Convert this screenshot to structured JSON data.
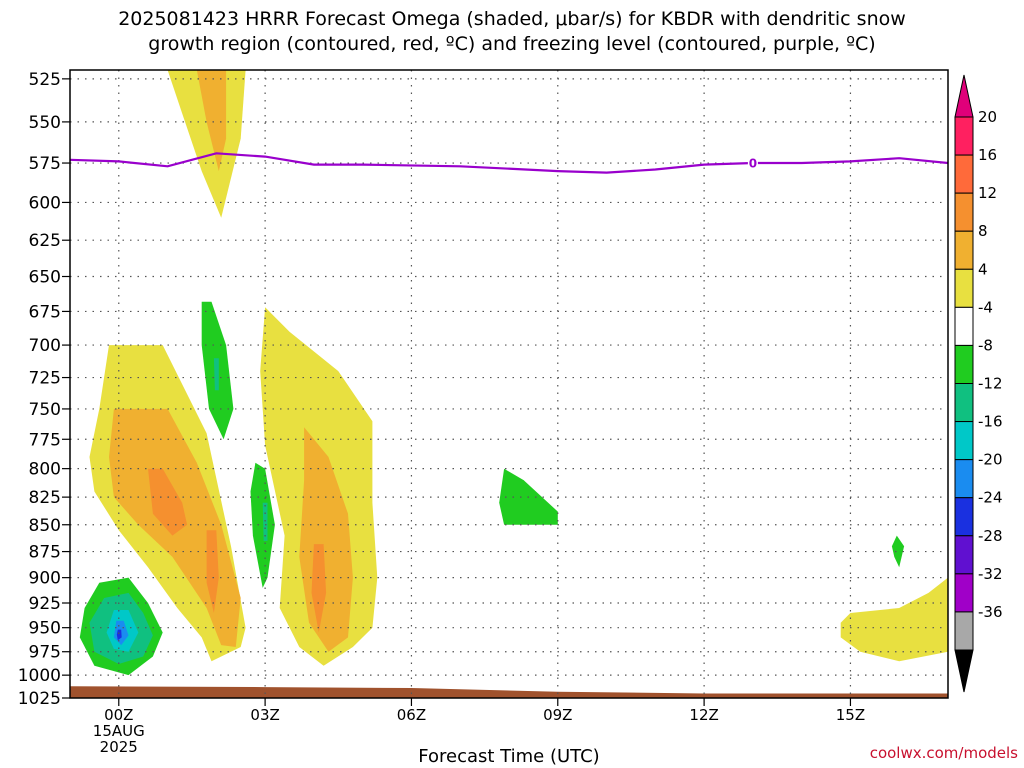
{
  "title": {
    "line1": "2025081423 HRRR Forecast Omega (shaded, μbar/s) for KBDR with dendritic snow",
    "line2": "growth region (contoured, red, ºC) and freezing level (contoured, purple, ºC)"
  },
  "credit": "coolwx.com/models",
  "chart_data": {
    "type": "contour",
    "xlabel": "Forecast Time (UTC)",
    "x_unit": "hours",
    "x_ticks": [
      {
        "h": 0,
        "label": "00Z",
        "sub": [
          "15AUG",
          "2025"
        ]
      },
      {
        "h": 3,
        "label": "03Z",
        "sub": []
      },
      {
        "h": 6,
        "label": "06Z",
        "sub": []
      },
      {
        "h": 9,
        "label": "09Z",
        "sub": []
      },
      {
        "h": 12,
        "label": "12Z",
        "sub": []
      },
      {
        "h": 15,
        "label": "15Z",
        "sub": []
      }
    ],
    "xlim": [
      -1,
      17
    ],
    "y_unit": "hPa",
    "y_ticks": [
      525,
      550,
      575,
      600,
      625,
      650,
      675,
      700,
      725,
      750,
      775,
      800,
      825,
      850,
      875,
      900,
      925,
      950,
      975,
      1000,
      1025
    ],
    "ylim": [
      520,
      1025
    ],
    "y_scale": "log",
    "grid": true,
    "colorbar": {
      "labels": [
        "20",
        "16",
        "12",
        "8",
        "4",
        "-4",
        "-8",
        "-12",
        "-16",
        "-20",
        "-24",
        "-28",
        "-32",
        "-36"
      ],
      "colors": [
        "#ff2060",
        "#ff6a3a",
        "#f5902f",
        "#f0b030",
        "#e8e040",
        "#ffffff",
        "#20cc20",
        "#10c080",
        "#00c8c8",
        "#1a8cf0",
        "#1a30e0",
        "#6010d0",
        "#a000c8",
        "#a8a8a8"
      ],
      "top_arrow": "#e0007a",
      "bottom_arrow": "#000000"
    },
    "freezing_level": {
      "color": "#9900cc",
      "label": "0",
      "label_at": [
        13,
        575
      ],
      "points": [
        [
          -1,
          573
        ],
        [
          0,
          574
        ],
        [
          1,
          577
        ],
        [
          1.5,
          573
        ],
        [
          2,
          569
        ],
        [
          3,
          571
        ],
        [
          4,
          576
        ],
        [
          5,
          576
        ],
        [
          7,
          577
        ],
        [
          9,
          580
        ],
        [
          10,
          581
        ],
        [
          11,
          579
        ],
        [
          12,
          576
        ],
        [
          13,
          575
        ],
        [
          14,
          575
        ],
        [
          15,
          574
        ],
        [
          16,
          572
        ],
        [
          17,
          575
        ]
      ]
    },
    "terrain": {
      "color": "#a0522d",
      "top_left": 1012,
      "top_right": 1020
    },
    "omega_regions": [
      {
        "value": "4",
        "color": "#e8e040",
        "points": [
          [
            1,
            520
          ],
          [
            2.6,
            520
          ],
          [
            2.5,
            560
          ],
          [
            2.1,
            610
          ],
          [
            1.7,
            580
          ],
          [
            1.3,
            545
          ]
        ]
      },
      {
        "value": "8",
        "color": "#f0b030",
        "points": [
          [
            1.6,
            520
          ],
          [
            2.2,
            520
          ],
          [
            2.2,
            560
          ],
          [
            2.05,
            580
          ],
          [
            1.8,
            550
          ]
        ]
      },
      {
        "value": "4",
        "color": "#e8e040",
        "points": [
          [
            -0.2,
            700
          ],
          [
            0.9,
            700
          ],
          [
            1.8,
            770
          ],
          [
            2.3,
            870
          ],
          [
            2.6,
            950
          ],
          [
            2.5,
            970
          ],
          [
            1.9,
            985
          ],
          [
            1.7,
            960
          ],
          [
            1.2,
            930
          ],
          [
            0.6,
            890
          ],
          [
            0,
            855
          ],
          [
            -0.5,
            820
          ],
          [
            -0.6,
            790
          ],
          [
            -0.4,
            750
          ]
        ]
      },
      {
        "value": "8",
        "color": "#f0b030",
        "points": [
          [
            -0.1,
            750
          ],
          [
            1,
            750
          ],
          [
            1.6,
            795
          ],
          [
            2.1,
            850
          ],
          [
            2.5,
            920
          ],
          [
            2.4,
            970
          ],
          [
            2.1,
            968
          ],
          [
            1.8,
            930
          ],
          [
            1.1,
            880
          ],
          [
            0.4,
            850
          ],
          [
            -0.1,
            825
          ],
          [
            -0.2,
            790
          ]
        ]
      },
      {
        "value": "12",
        "color": "#f5902f",
        "points": [
          [
            0.6,
            800
          ],
          [
            0.9,
            800
          ],
          [
            1.3,
            830
          ],
          [
            1.4,
            850
          ],
          [
            1.1,
            860
          ],
          [
            0.7,
            840
          ]
        ]
      },
      {
        "value": "12",
        "color": "#f5902f",
        "points": [
          [
            1.8,
            855
          ],
          [
            2.0,
            855
          ],
          [
            2.05,
            900
          ],
          [
            1.95,
            935
          ],
          [
            1.8,
            905
          ]
        ]
      },
      {
        "value": "-4",
        "color": "#20cc20",
        "points": [
          [
            1.7,
            668
          ],
          [
            1.9,
            668
          ],
          [
            2.2,
            700
          ],
          [
            2.35,
            750
          ],
          [
            2.15,
            775
          ],
          [
            1.85,
            750
          ],
          [
            1.7,
            700
          ]
        ]
      },
      {
        "value": "-8",
        "color": "#10c080",
        "points": [
          [
            1.95,
            710
          ],
          [
            2.05,
            710
          ],
          [
            2.05,
            735
          ],
          [
            1.97,
            735
          ]
        ]
      },
      {
        "value": "4",
        "color": "#e8e040",
        "points": [
          [
            3,
            672
          ],
          [
            3.5,
            690
          ],
          [
            4.5,
            720
          ],
          [
            5.2,
            760
          ],
          [
            5.2,
            830
          ],
          [
            5.3,
            900
          ],
          [
            5.2,
            950
          ],
          [
            4.8,
            970
          ],
          [
            4.2,
            990
          ],
          [
            3.7,
            970
          ],
          [
            3.3,
            930
          ],
          [
            3.4,
            860
          ],
          [
            3.0,
            780
          ],
          [
            2.9,
            720
          ]
        ]
      },
      {
        "value": "8",
        "color": "#f0b030",
        "points": [
          [
            3.8,
            765
          ],
          [
            4.3,
            790
          ],
          [
            4.7,
            840
          ],
          [
            4.8,
            900
          ],
          [
            4.7,
            960
          ],
          [
            4.3,
            975
          ],
          [
            3.9,
            945
          ],
          [
            3.7,
            880
          ],
          [
            3.8,
            810
          ]
        ]
      },
      {
        "value": "12",
        "color": "#f5902f",
        "points": [
          [
            4.0,
            868
          ],
          [
            4.2,
            868
          ],
          [
            4.25,
            915
          ],
          [
            4.1,
            955
          ],
          [
            3.95,
            915
          ]
        ]
      },
      {
        "value": "-4",
        "color": "#20cc20",
        "points": [
          [
            2.8,
            795
          ],
          [
            3.0,
            800
          ],
          [
            3.2,
            850
          ],
          [
            3.05,
            900
          ],
          [
            2.95,
            910
          ],
          [
            2.75,
            860
          ],
          [
            2.7,
            820
          ]
        ]
      },
      {
        "value": "-8",
        "color": "#10c080",
        "points": [
          [
            2.95,
            830
          ],
          [
            3.05,
            830
          ],
          [
            3.05,
            865
          ],
          [
            2.97,
            865
          ]
        ]
      },
      {
        "value": "-4",
        "color": "#20cc20",
        "points": [
          [
            7.9,
            800
          ],
          [
            8.3,
            810
          ],
          [
            9.0,
            838
          ],
          [
            9.0,
            850
          ],
          [
            7.9,
            850
          ],
          [
            7.8,
            830
          ]
        ]
      },
      {
        "value": "-4",
        "color": "#20cc20",
        "points": [
          [
            15.95,
            860
          ],
          [
            16.1,
            870
          ],
          [
            16.0,
            890
          ],
          [
            15.9,
            880
          ],
          [
            15.85,
            870
          ]
        ]
      },
      {
        "value": "4",
        "color": "#e8e040",
        "points": [
          [
            15,
            935
          ],
          [
            16,
            930
          ],
          [
            16.6,
            915
          ],
          [
            17,
            900
          ],
          [
            17,
            975
          ],
          [
            16,
            985
          ],
          [
            15.2,
            975
          ],
          [
            14.8,
            960
          ],
          [
            14.8,
            945
          ]
        ]
      },
      {
        "value": "-4",
        "color": "#20cc20",
        "points": [
          [
            -0.4,
            905
          ],
          [
            0.2,
            900
          ],
          [
            0.6,
            925
          ],
          [
            0.9,
            955
          ],
          [
            0.7,
            980
          ],
          [
            0.2,
            1000
          ],
          [
            -0.5,
            990
          ],
          [
            -0.8,
            960
          ],
          [
            -0.7,
            930
          ]
        ]
      },
      {
        "value": "-8",
        "color": "#10c080",
        "points": [
          [
            -0.3,
            920
          ],
          [
            0.2,
            915
          ],
          [
            0.5,
            935
          ],
          [
            0.7,
            958
          ],
          [
            0.5,
            980
          ],
          [
            0,
            988
          ],
          [
            -0.5,
            975
          ],
          [
            -0.6,
            945
          ]
        ]
      },
      {
        "value": "-12",
        "color": "#00c8c8",
        "points": [
          [
            -0.1,
            932
          ],
          [
            0.2,
            932
          ],
          [
            0.4,
            955
          ],
          [
            0.2,
            975
          ],
          [
            -0.1,
            972
          ],
          [
            -0.25,
            955
          ]
        ]
      },
      {
        "value": "-16",
        "color": "#1a8cf0",
        "points": [
          [
            -0.05,
            943
          ],
          [
            0.1,
            943
          ],
          [
            0.2,
            958
          ],
          [
            0.05,
            968
          ],
          [
            -0.1,
            960
          ]
        ]
      },
      {
        "value": "-24",
        "color": "#1a30e0",
        "points": [
          [
            -0.02,
            952
          ],
          [
            0.05,
            952
          ],
          [
            0.06,
            960
          ],
          [
            -0.02,
            963
          ],
          [
            -0.04,
            957
          ]
        ]
      }
    ]
  }
}
